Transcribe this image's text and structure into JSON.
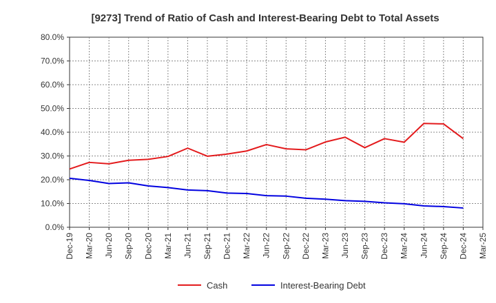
{
  "chart_data": {
    "type": "line",
    "title": "[9273]  Trend of Ratio of Cash and Interest-Bearing Debt to Total Assets",
    "xlabel": "",
    "ylabel": "",
    "ylim": [
      0,
      80
    ],
    "y_ticks": [
      "0.0%",
      "10.0%",
      "20.0%",
      "30.0%",
      "40.0%",
      "50.0%",
      "60.0%",
      "70.0%",
      "80.0%"
    ],
    "x_ticks": [
      "Dec-19",
      "Mar-20",
      "Jun-20",
      "Sep-20",
      "Dec-20",
      "Mar-21",
      "Jun-21",
      "Sep-21",
      "Dec-21",
      "Mar-22",
      "Jun-22",
      "Sep-22",
      "Dec-22",
      "Mar-23",
      "Jun-23",
      "Sep-23",
      "Dec-23",
      "Mar-24",
      "Jun-24",
      "Sep-24",
      "Dec-24",
      "Mar-25"
    ],
    "x": [
      "Dec-19",
      "Mar-20",
      "Jun-20",
      "Sep-20",
      "Dec-20",
      "Mar-21",
      "Jun-21",
      "Sep-21",
      "Dec-21",
      "Mar-22",
      "Jun-22",
      "Sep-22",
      "Dec-22",
      "Mar-23",
      "Jun-23",
      "Sep-23",
      "Dec-23",
      "Mar-24",
      "Jun-24",
      "Sep-24",
      "Dec-24"
    ],
    "grid": true,
    "legend_position": "bottom",
    "series": [
      {
        "name": "Cash",
        "color": "#e31a1c",
        "values": [
          24.5,
          27.3,
          26.7,
          28.2,
          28.6,
          29.8,
          33.3,
          29.9,
          30.8,
          32.1,
          34.8,
          33.0,
          32.6,
          35.9,
          37.9,
          33.5,
          37.3,
          35.8,
          43.7,
          43.5,
          37.3
        ]
      },
      {
        "name": "Interest-Bearing Debt",
        "color": "#0000e0",
        "values": [
          20.6,
          19.7,
          18.4,
          18.7,
          17.4,
          16.7,
          15.7,
          15.4,
          14.4,
          14.2,
          13.3,
          13.1,
          12.2,
          11.8,
          11.2,
          10.9,
          10.3,
          9.9,
          9.0,
          8.7,
          8.1
        ]
      }
    ]
  }
}
